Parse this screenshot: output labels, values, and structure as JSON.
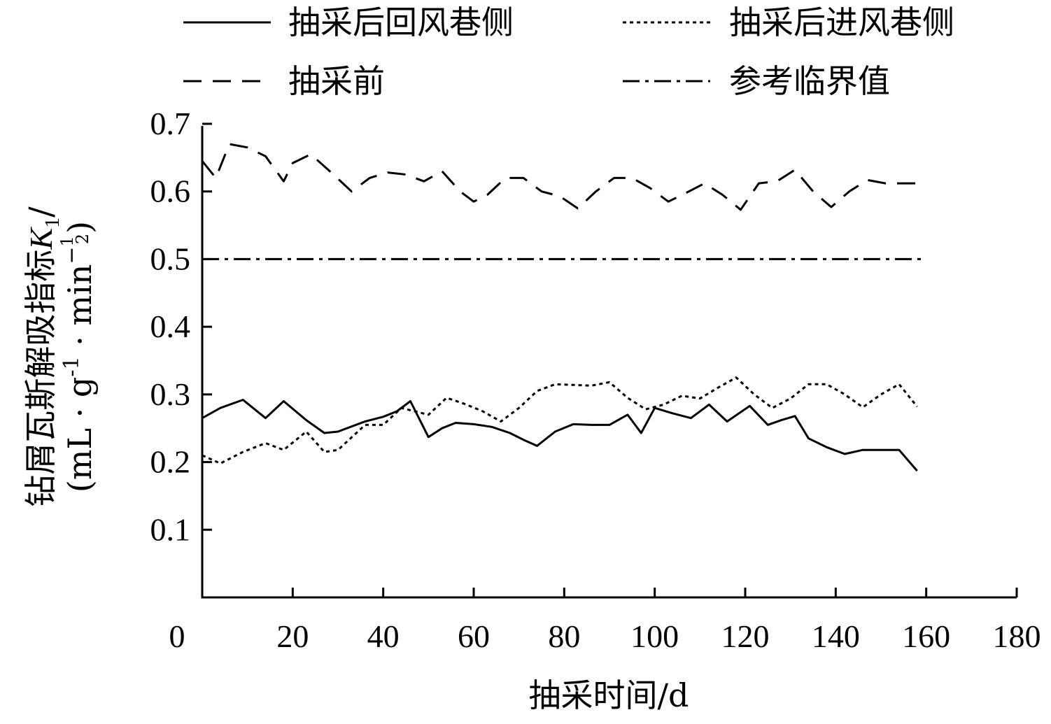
{
  "chart_data": {
    "type": "line",
    "title": "",
    "xlabel": "抽采时间/d",
    "ylabel": {
      "line1_prefix": "钻屑瓦斯解吸指标",
      "line1_var": "K",
      "line1_sub": "1",
      "line1_suffix": "/",
      "line2_open": "(mL · g",
      "line2_sup1": "-1",
      "line2_mid": " · min",
      "line2_sup2_minus": "−",
      "line2_sup2_num": "1",
      "line2_sup2_den": "2",
      "line2_close": ")"
    },
    "xlim": [
      0,
      180
    ],
    "ylim": [
      0,
      0.7
    ],
    "x_ticks": [
      0,
      20,
      40,
      60,
      80,
      100,
      120,
      140,
      160,
      180
    ],
    "x_tick_labels": [
      "0",
      "20",
      "40",
      "60",
      "80",
      "100",
      "120",
      "140",
      "160",
      "180"
    ],
    "y_ticks": [
      0.1,
      0.2,
      0.3,
      0.4,
      0.5,
      0.6,
      0.7
    ],
    "y_tick_labels": [
      "0.1",
      "0.2",
      "0.3",
      "0.4",
      "0.5",
      "0.6",
      "0.7"
    ],
    "grid": false,
    "legend_position": "top",
    "series": [
      {
        "name": "抽采后回风巷侧",
        "style": "solid",
        "color": "#000000",
        "x": [
          0,
          4,
          9,
          14,
          18,
          23,
          27,
          30,
          36,
          40,
          43,
          46,
          50,
          53,
          56,
          60,
          64,
          68,
          71,
          74,
          78,
          82,
          86,
          90,
          94,
          97,
          100,
          104,
          108,
          112,
          116,
          121,
          125,
          128,
          131,
          134,
          138,
          142,
          146,
          150,
          154,
          158
        ],
        "y": [
          0.265,
          0.28,
          0.292,
          0.265,
          0.29,
          0.262,
          0.243,
          0.245,
          0.26,
          0.267,
          0.275,
          0.29,
          0.237,
          0.25,
          0.258,
          0.256,
          0.252,
          0.243,
          0.233,
          0.224,
          0.245,
          0.256,
          0.255,
          0.255,
          0.27,
          0.243,
          0.28,
          0.272,
          0.265,
          0.285,
          0.26,
          0.283,
          0.255,
          0.262,
          0.268,
          0.235,
          0.222,
          0.212,
          0.218,
          0.218,
          0.218,
          0.187
        ]
      },
      {
        "name": "抽采后进风巷侧",
        "style": "dotted",
        "color": "#000000",
        "x": [
          0,
          4,
          9,
          14,
          18,
          23,
          27,
          30,
          36,
          40,
          44,
          47,
          50,
          54,
          58,
          62,
          66,
          70,
          74,
          78,
          82,
          86,
          90,
          94,
          98,
          102,
          106,
          110,
          114,
          118,
          122,
          126,
          130,
          134,
          138,
          142,
          146,
          150,
          154,
          158
        ],
        "y": [
          0.21,
          0.198,
          0.215,
          0.228,
          0.218,
          0.245,
          0.215,
          0.218,
          0.255,
          0.255,
          0.28,
          0.275,
          0.27,
          0.295,
          0.286,
          0.275,
          0.26,
          0.28,
          0.305,
          0.315,
          0.314,
          0.313,
          0.318,
          0.295,
          0.278,
          0.285,
          0.298,
          0.294,
          0.31,
          0.325,
          0.3,
          0.28,
          0.294,
          0.315,
          0.315,
          0.3,
          0.281,
          0.3,
          0.315,
          0.282
        ]
      },
      {
        "name": "抽采前",
        "style": "dashed",
        "color": "#000000",
        "x": [
          0,
          3,
          6,
          10,
          14,
          18,
          20,
          24,
          29,
          33,
          37,
          41,
          45,
          49,
          53,
          57,
          60,
          63,
          67,
          71,
          75,
          79,
          83,
          87,
          91,
          95,
          99,
          103,
          107,
          111,
          115,
          119,
          123,
          127,
          131,
          135,
          139,
          143,
          147,
          151,
          155,
          158
        ],
        "y": [
          0.645,
          0.62,
          0.67,
          0.665,
          0.652,
          0.615,
          0.642,
          0.655,
          0.625,
          0.6,
          0.62,
          0.628,
          0.625,
          0.615,
          0.63,
          0.6,
          0.585,
          0.595,
          0.62,
          0.62,
          0.6,
          0.593,
          0.575,
          0.6,
          0.62,
          0.62,
          0.605,
          0.585,
          0.598,
          0.612,
          0.595,
          0.573,
          0.612,
          0.615,
          0.632,
          0.6,
          0.577,
          0.6,
          0.617,
          0.612,
          0.612,
          0.612
        ]
      },
      {
        "name": "参考临界值",
        "style": "dashdot",
        "color": "#000000",
        "x": [
          0,
          160
        ],
        "y": [
          0.5,
          0.5
        ]
      }
    ]
  }
}
